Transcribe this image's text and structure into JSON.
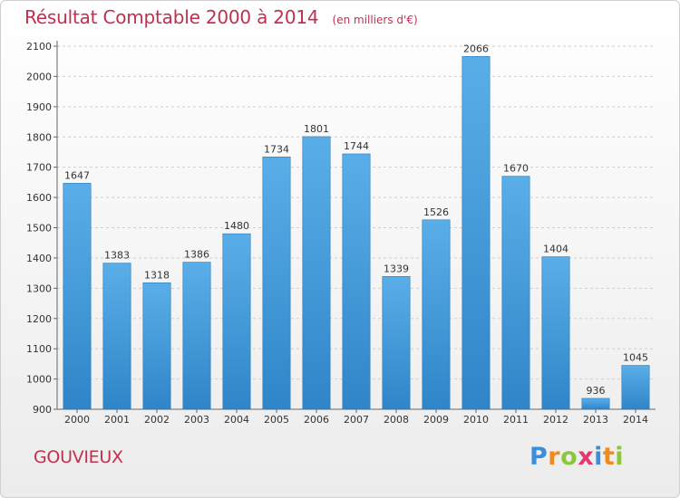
{
  "header": {
    "title": "Résultat Comptable 2000 à 2014",
    "unit": "(en milliers d'€)"
  },
  "footer": {
    "commune": "GOUVIEUX",
    "logo_letters": [
      "P",
      "r",
      "o",
      "x",
      "i",
      "t",
      "i"
    ],
    "logo_colors": [
      "#3a8fd8",
      "#f08a1c",
      "#8cc63f",
      "#e23a6a",
      "#3a8fd8",
      "#f08a1c",
      "#8cc63f"
    ]
  },
  "colors": {
    "bar_light": "#5aaee8",
    "bar_dark": "#2f85c8",
    "grid": "#cfcfcf",
    "axis": "#666666",
    "text": "#333333",
    "accent": "#c0304f"
  },
  "chart_data": {
    "type": "bar",
    "title": "Résultat Comptable 2000 à 2014",
    "xlabel": "",
    "ylabel": "",
    "categories": [
      "2000",
      "2001",
      "2002",
      "2003",
      "2004",
      "2005",
      "2006",
      "2007",
      "2008",
      "2009",
      "2010",
      "2011",
      "2012",
      "2013",
      "2014"
    ],
    "values": [
      1647,
      1383,
      1318,
      1386,
      1480,
      1734,
      1801,
      1744,
      1339,
      1526,
      2066,
      1670,
      1404,
      936,
      1045
    ],
    "ylim": [
      900,
      2100
    ],
    "yticks": [
      900,
      1000,
      1100,
      1200,
      1300,
      1400,
      1500,
      1600,
      1700,
      1800,
      1900,
      2000,
      2100
    ],
    "grid": true
  }
}
